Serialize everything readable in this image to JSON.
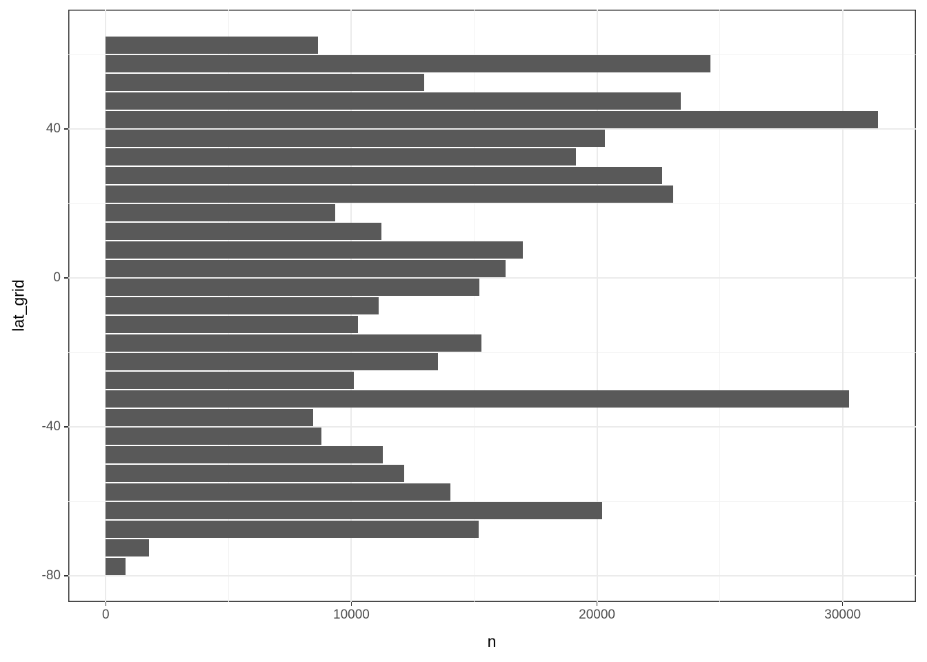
{
  "chart_data": {
    "type": "bar",
    "orientation": "horizontal",
    "title": "",
    "xlabel": "n",
    "ylabel": "lat_grid",
    "x_axis": {
      "ticks": [
        0,
        10000,
        20000,
        30000
      ],
      "minor_ticks": [
        5000,
        15000,
        25000
      ],
      "range": [
        -1500,
        33000
      ],
      "grid": true
    },
    "y_axis": {
      "ticks": [
        40,
        0,
        -40,
        -80
      ],
      "minor_ticks": [
        60,
        20,
        -20,
        -60
      ],
      "range": [
        -87,
        72
      ],
      "grid": true
    },
    "bin_width_degrees": 5,
    "bars": [
      {
        "lat_grid": 62.5,
        "n": 8630
      },
      {
        "lat_grid": 57.5,
        "n": 24620
      },
      {
        "lat_grid": 52.5,
        "n": 12970
      },
      {
        "lat_grid": 47.5,
        "n": 23420
      },
      {
        "lat_grid": 42.5,
        "n": 31450
      },
      {
        "lat_grid": 37.5,
        "n": 20310
      },
      {
        "lat_grid": 32.5,
        "n": 19150
      },
      {
        "lat_grid": 27.5,
        "n": 22650
      },
      {
        "lat_grid": 22.5,
        "n": 23100
      },
      {
        "lat_grid": 17.5,
        "n": 9340
      },
      {
        "lat_grid": 12.5,
        "n": 11230
      },
      {
        "lat_grid": 7.5,
        "n": 16990
      },
      {
        "lat_grid": 2.5,
        "n": 16290
      },
      {
        "lat_grid": -2.5,
        "n": 15220
      },
      {
        "lat_grid": -7.5,
        "n": 11120
      },
      {
        "lat_grid": -12.5,
        "n": 10270
      },
      {
        "lat_grid": -17.5,
        "n": 15290
      },
      {
        "lat_grid": -22.5,
        "n": 13530
      },
      {
        "lat_grid": -27.5,
        "n": 10090
      },
      {
        "lat_grid": -32.5,
        "n": 30260
      },
      {
        "lat_grid": -37.5,
        "n": 8440
      },
      {
        "lat_grid": -42.5,
        "n": 8770
      },
      {
        "lat_grid": -47.5,
        "n": 11280
      },
      {
        "lat_grid": -52.5,
        "n": 12150
      },
      {
        "lat_grid": -57.5,
        "n": 14020
      },
      {
        "lat_grid": -62.5,
        "n": 20200
      },
      {
        "lat_grid": -67.5,
        "n": 15190
      },
      {
        "lat_grid": -72.5,
        "n": 1760
      },
      {
        "lat_grid": -77.5,
        "n": 800
      }
    ],
    "colors": {
      "bar_fill": "#595959",
      "panel_border": "#333333",
      "grid_major": "#EBEBEB",
      "grid_minor": "#F2F2F2",
      "tick_mark": "#333333",
      "tick_label": "#4D4D4D",
      "axis_title": "#000000",
      "background": "#FFFFFF"
    },
    "legend": "none"
  }
}
